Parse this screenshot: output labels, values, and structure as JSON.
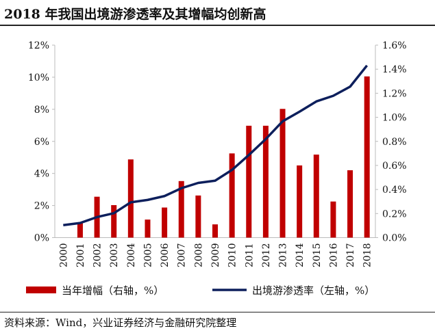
{
  "title": "2018 年我国出境游渗透率及其增幅均创新高",
  "source": "资料来源：Wind，兴业证券经济与金融研究院整理",
  "chart_data": {
    "type": "bar+line",
    "categories": [
      "2000",
      "2001",
      "2002",
      "2003",
      "2004",
      "2005",
      "2006",
      "2007",
      "2008",
      "2009",
      "2010",
      "2011",
      "2012",
      "2013",
      "2014",
      "2015",
      "2016",
      "2017",
      "2018"
    ],
    "series": [
      {
        "name": "当年增幅（右轴，%）",
        "type": "bar",
        "axis": "right",
        "color": "#C00000",
        "values": [
          null,
          0.12,
          0.34,
          0.27,
          0.65,
          0.15,
          0.25,
          0.47,
          0.35,
          0.11,
          0.7,
          0.93,
          0.93,
          1.07,
          0.6,
          0.69,
          0.3,
          0.56,
          1.34
        ]
      },
      {
        "name": "出境游渗透率（左轴，%）",
        "type": "line",
        "axis": "left",
        "color": "#0D1F5C",
        "values": [
          0.78,
          0.91,
          1.28,
          1.52,
          2.2,
          2.35,
          2.59,
          3.08,
          3.41,
          3.55,
          4.22,
          5.15,
          6.14,
          7.25,
          7.85,
          8.49,
          8.84,
          9.41,
          10.73
        ]
      }
    ],
    "left_axis": {
      "range": [
        0,
        12
      ],
      "ticks": [
        "0%",
        "2%",
        "4%",
        "6%",
        "8%",
        "10%",
        "12%"
      ]
    },
    "right_axis": {
      "range": [
        0,
        1.6
      ],
      "ticks": [
        "0.0%",
        "0.2%",
        "0.4%",
        "0.6%",
        "0.8%",
        "1.0%",
        "1.2%",
        "1.4%",
        "1.6%"
      ]
    },
    "legend_placement": "bottom",
    "grid": false
  }
}
